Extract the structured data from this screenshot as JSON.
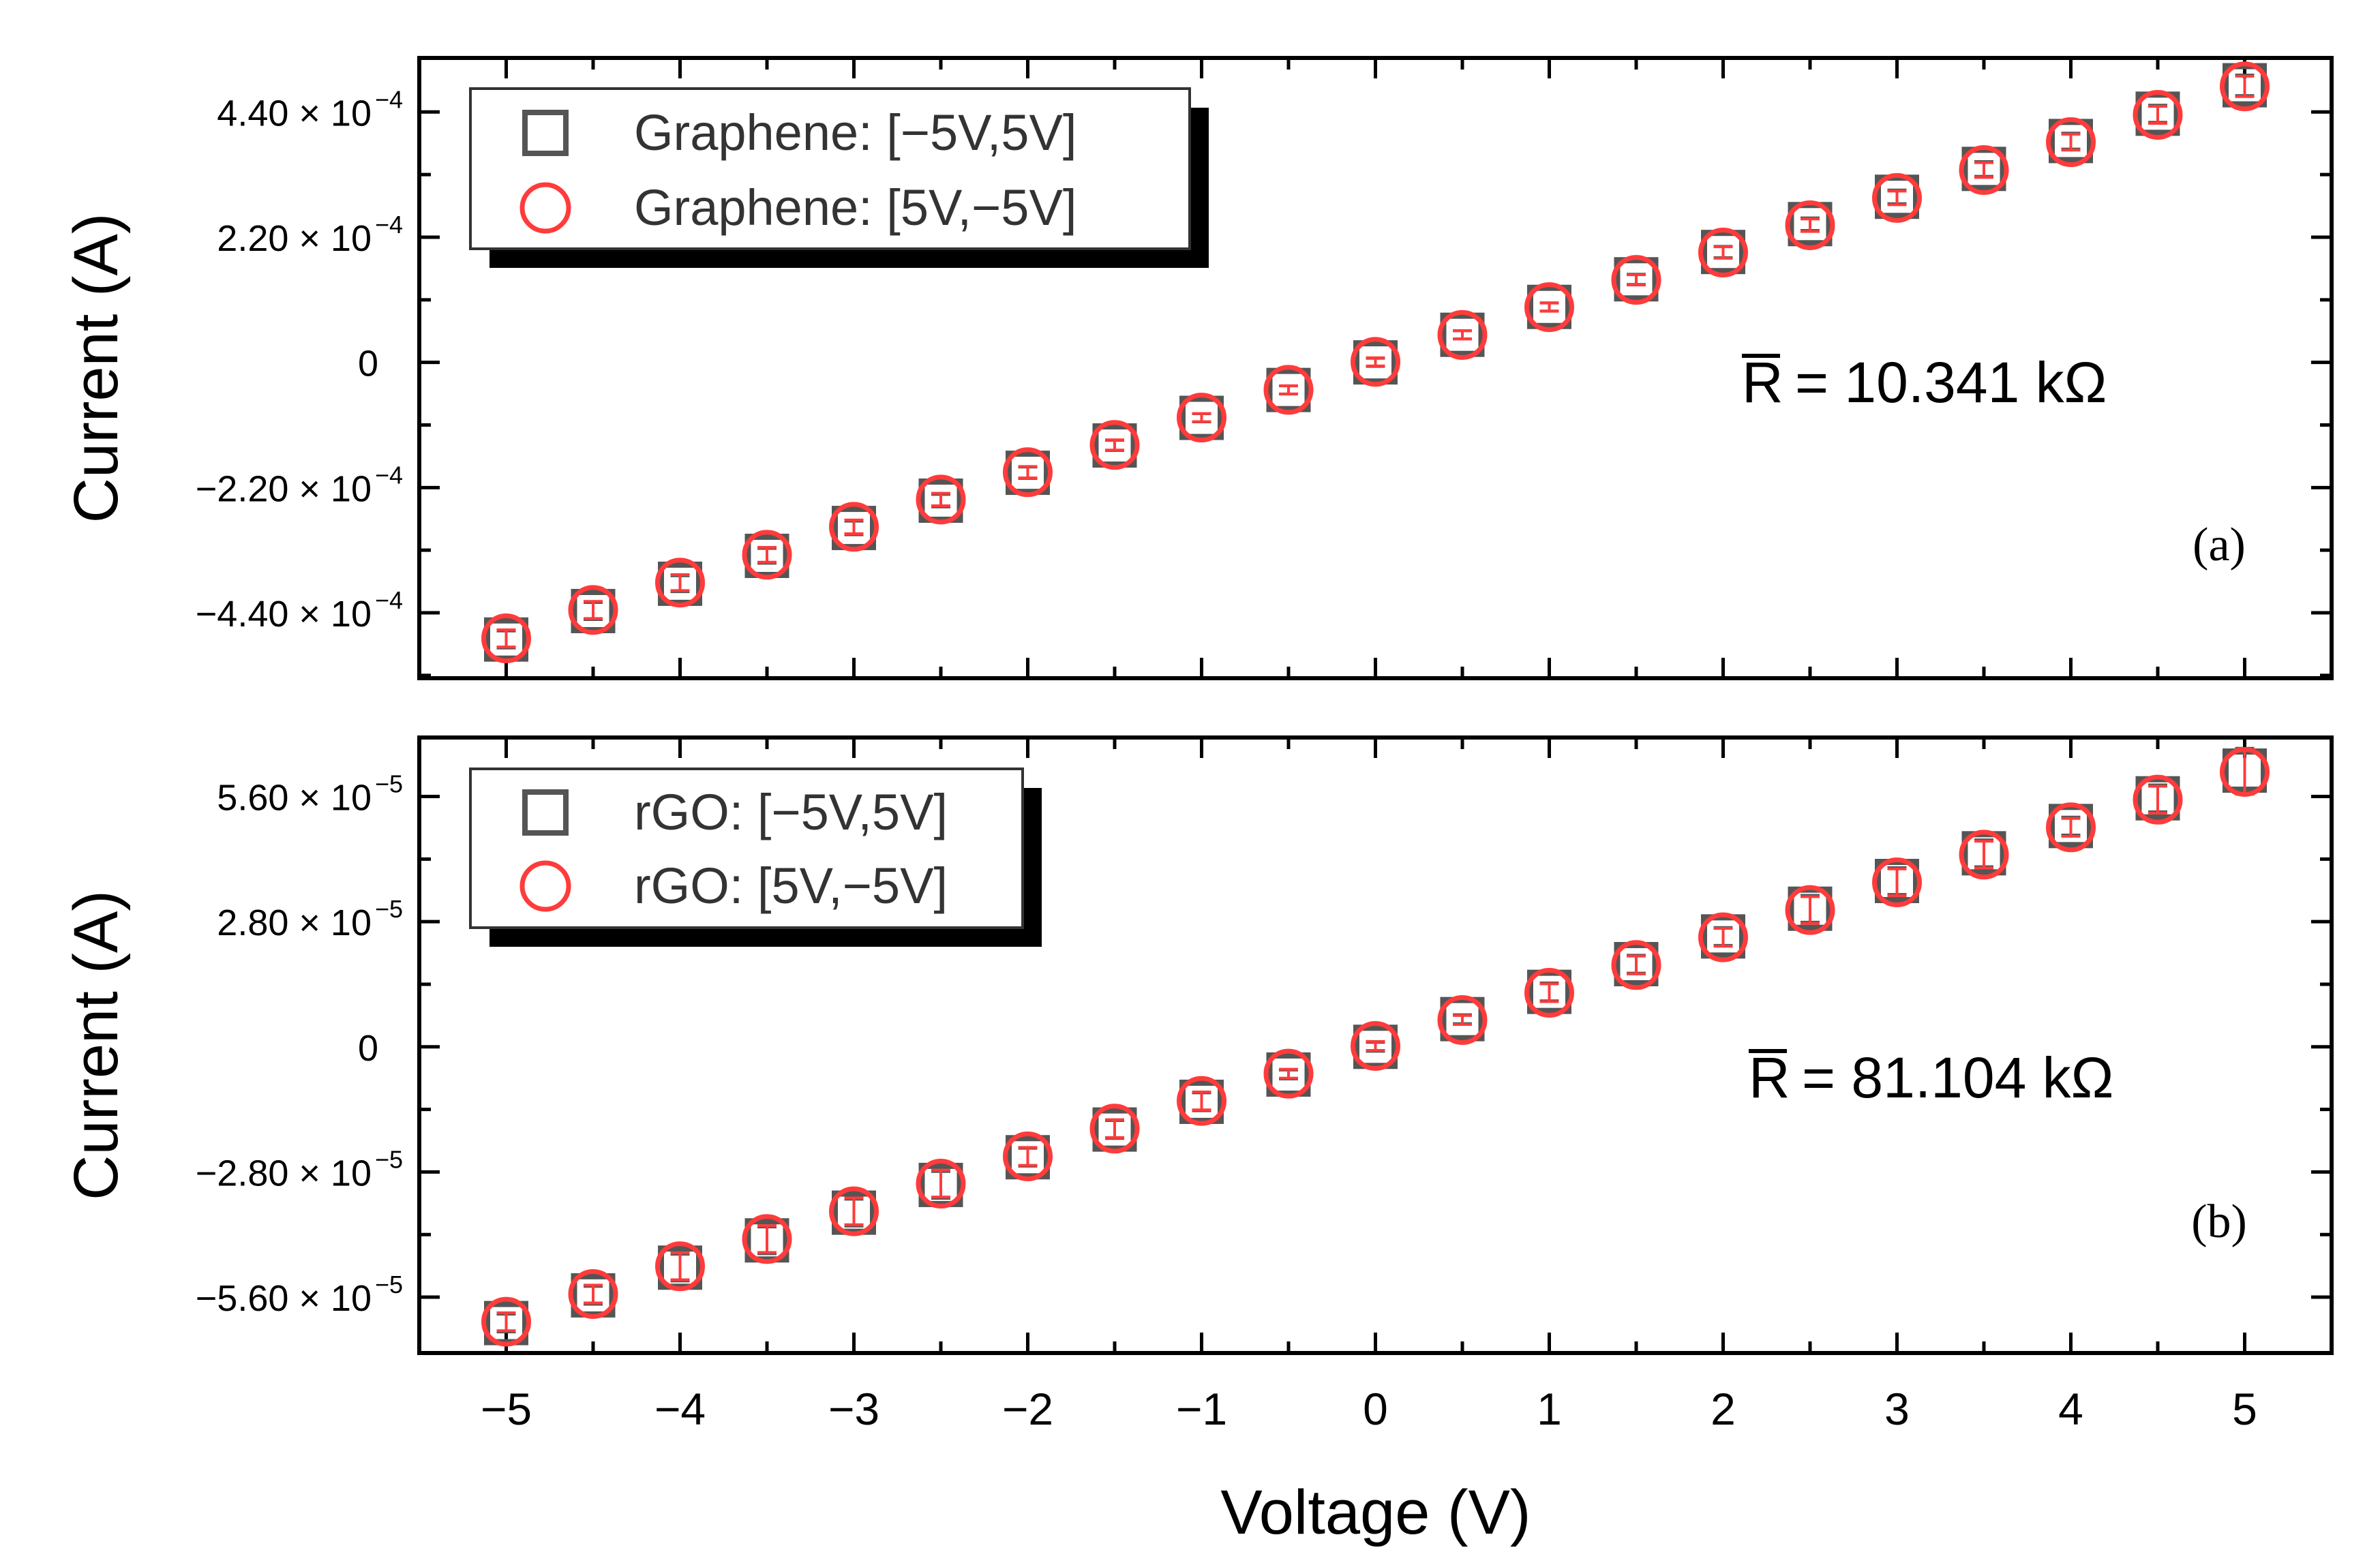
{
  "figure": {
    "xlabel": "Voltage (V)"
  },
  "colors": {
    "series_forward": "#555555",
    "series_reverse": "#ff3b3b",
    "axis": "#000000",
    "shadow": "#000000"
  },
  "chart_data": [
    {
      "type": "scatter",
      "panel_label": "(a)",
      "ylabel": "Current (A)",
      "annotation": {
        "symbol": "R",
        "text": "= 10.341 kΩ"
      },
      "legend_position": "top-left",
      "x": [
        -5,
        -4.5,
        -4,
        -3.5,
        -3,
        -2.5,
        -2,
        -1.5,
        -1,
        -0.5,
        0,
        0.5,
        1,
        1.5,
        2,
        2.5,
        3,
        3.5,
        4,
        4.5,
        5
      ],
      "xlim": [
        -5.5,
        5.5
      ],
      "ylim": [
        -0.000555,
        0.000535
      ],
      "xticks": [
        -5,
        -4,
        -3,
        -2,
        -1,
        0,
        1,
        2,
        3,
        4,
        5
      ],
      "yticks": [
        {
          "value": -0.00044,
          "mantissa": "−4.40 × 10",
          "exp": "−4"
        },
        {
          "value": -0.00022,
          "mantissa": "−2.20 × 10",
          "exp": "−4"
        },
        {
          "value": 0,
          "mantissa": "0",
          "exp": ""
        },
        {
          "value": 0.00022,
          "mantissa": "2.20 × 10",
          "exp": "−4"
        },
        {
          "value": 0.00044,
          "mantissa": "4.40 × 10",
          "exp": "−4"
        }
      ],
      "series": [
        {
          "name": "Graphene: [−5V,5V]",
          "marker": "square",
          "values": [
            -0.000487,
            -0.000437,
            -0.000389,
            -0.00034,
            -0.000291,
            -0.000243,
            -0.000194,
            -0.000146,
            -9.75e-05,
            -4.85e-05,
            0,
            4.85e-05,
            9.75e-05,
            0.000146,
            0.000194,
            0.000243,
            0.000291,
            0.00034,
            0.000389,
            0.000437,
            0.000487
          ],
          "errors": [
            1.5e-05,
            1.5e-05,
            1.4e-05,
            1.3e-05,
            1.2e-05,
            1.1e-05,
            1e-05,
            9e-06,
            7e-06,
            5e-06,
            2e-06,
            5e-06,
            7e-06,
            9e-06,
            1e-05,
            1.1e-05,
            1.2e-05,
            1.3e-05,
            1.4e-05,
            1.5e-05,
            1.8e-05
          ]
        },
        {
          "name": "Graphene: [5V,−5V]",
          "marker": "circle",
          "values": [
            -0.000485,
            -0.000435,
            -0.000387,
            -0.000338,
            -0.000289,
            -0.000241,
            -0.000193,
            -0.000145,
            -9.7e-05,
            -4.82e-05,
            1e-06,
            4.82e-05,
            9.7e-05,
            0.000145,
            0.000193,
            0.000241,
            0.000289,
            0.000338,
            0.000387,
            0.000435,
            0.000485
          ],
          "errors": [
            1.5e-05,
            1.5e-05,
            1.4e-05,
            1.3e-05,
            1.2e-05,
            1.1e-05,
            1e-05,
            9e-06,
            7e-06,
            5e-06,
            2e-06,
            5e-06,
            7e-06,
            9e-06,
            1e-05,
            1.1e-05,
            1.2e-05,
            1.3e-05,
            1.4e-05,
            1.5e-05,
            1.8e-05
          ]
        }
      ]
    },
    {
      "type": "scatter",
      "panel_label": "(b)",
      "ylabel": "Current (A)",
      "annotation": {
        "symbol": "R",
        "text": "= 81.104 kΩ"
      },
      "legend_position": "top-left",
      "x": [
        -5,
        -4.5,
        -4,
        -3.5,
        -3,
        -2.5,
        -2,
        -1.5,
        -1,
        -0.5,
        0,
        0.5,
        1,
        1.5,
        2,
        2.5,
        3,
        3.5,
        4,
        4.5,
        5
      ],
      "xlim": [
        -5.5,
        5.5
      ],
      "ylim": [
        -6.85e-05,
        6.92e-05
      ],
      "xticks": [
        -5,
        -4,
        -3,
        -2,
        -1,
        0,
        1,
        2,
        3,
        4,
        5
      ],
      "yticks": [
        {
          "value": -5.6e-05,
          "mantissa": "−5.60 × 10",
          "exp": "−5"
        },
        {
          "value": -2.8e-05,
          "mantissa": "−2.80 × 10",
          "exp": "−5"
        },
        {
          "value": 0,
          "mantissa": "0",
          "exp": ""
        },
        {
          "value": 2.8e-05,
          "mantissa": "2.80 × 10",
          "exp": "−5"
        },
        {
          "value": 5.6e-05,
          "mantissa": "5.60 × 10",
          "exp": "−5"
        }
      ],
      "series": [
        {
          "name": "rGO: [−5V,5V]",
          "marker": "square",
          "values": [
            -6.18e-05,
            -5.56e-05,
            -4.94e-05,
            -4.33e-05,
            -3.71e-05,
            -3.09e-05,
            -2.47e-05,
            -1.85e-05,
            -1.23e-05,
            -6.2e-06,
            0,
            6.2e-06,
            1.23e-05,
            1.85e-05,
            2.47e-05,
            3.09e-05,
            3.71e-05,
            4.33e-05,
            4.94e-05,
            5.56e-05,
            6.18e-05
          ],
          "errors": [
            2e-06,
            2e-06,
            3e-06,
            3e-06,
            3e-06,
            3e-06,
            2e-06,
            2e-06,
            2e-06,
            1e-06,
            1e-06,
            1e-06,
            2e-06,
            2e-06,
            2e-06,
            3e-06,
            3e-06,
            3e-06,
            2e-06,
            3e-06,
            5e-06
          ]
        },
        {
          "name": "rGO: [5V,−5V]",
          "marker": "circle",
          "values": [
            -6.15e-05,
            -5.53e-05,
            -4.91e-05,
            -4.3e-05,
            -3.68e-05,
            -3.06e-05,
            -2.45e-05,
            -1.83e-05,
            -1.21e-05,
            -6e-06,
            2e-07,
            6e-06,
            1.21e-05,
            1.83e-05,
            2.45e-05,
            3.06e-05,
            3.68e-05,
            4.3e-05,
            4.91e-05,
            5.53e-05,
            6.15e-05
          ],
          "errors": [
            2e-06,
            2e-06,
            3e-06,
            3e-06,
            3e-06,
            3e-06,
            2e-06,
            2e-06,
            2e-06,
            1e-06,
            1e-06,
            1e-06,
            2e-06,
            2e-06,
            2e-06,
            3e-06,
            3e-06,
            3e-06,
            2e-06,
            3e-06,
            5e-06
          ]
        }
      ]
    }
  ]
}
